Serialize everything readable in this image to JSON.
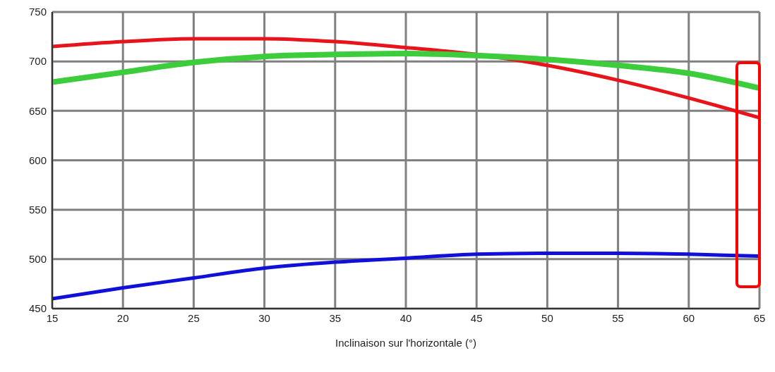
{
  "chart_data": {
    "type": "line",
    "xlabel": "Inclinaison sur l'horizontale (°)",
    "x": [
      15,
      20,
      25,
      30,
      35,
      40,
      45,
      50,
      55,
      60,
      65
    ],
    "series": [
      {
        "color": "#e8141b",
        "values": [
          715,
          720,
          723,
          723,
          720,
          714,
          707,
          696,
          681,
          663,
          643
        ]
      },
      {
        "color": "#3ccc3c",
        "values": [
          679,
          689,
          699,
          705,
          707,
          708,
          706,
          702,
          696,
          688,
          673
        ]
      },
      {
        "color": "#1010d8",
        "values": [
          460,
          471,
          481,
          491,
          497,
          501,
          505,
          506,
          506,
          505,
          503
        ]
      }
    ],
    "xlim": [
      15,
      65
    ],
    "xticks": [
      15,
      20,
      25,
      30,
      35,
      40,
      45,
      50,
      55,
      60,
      65
    ],
    "ylim": [
      450,
      750
    ],
    "yticks": [
      450,
      500,
      550,
      600,
      650,
      700,
      750
    ],
    "grid": true,
    "legend": false,
    "marker": "none",
    "line_style": "solid"
  }
}
